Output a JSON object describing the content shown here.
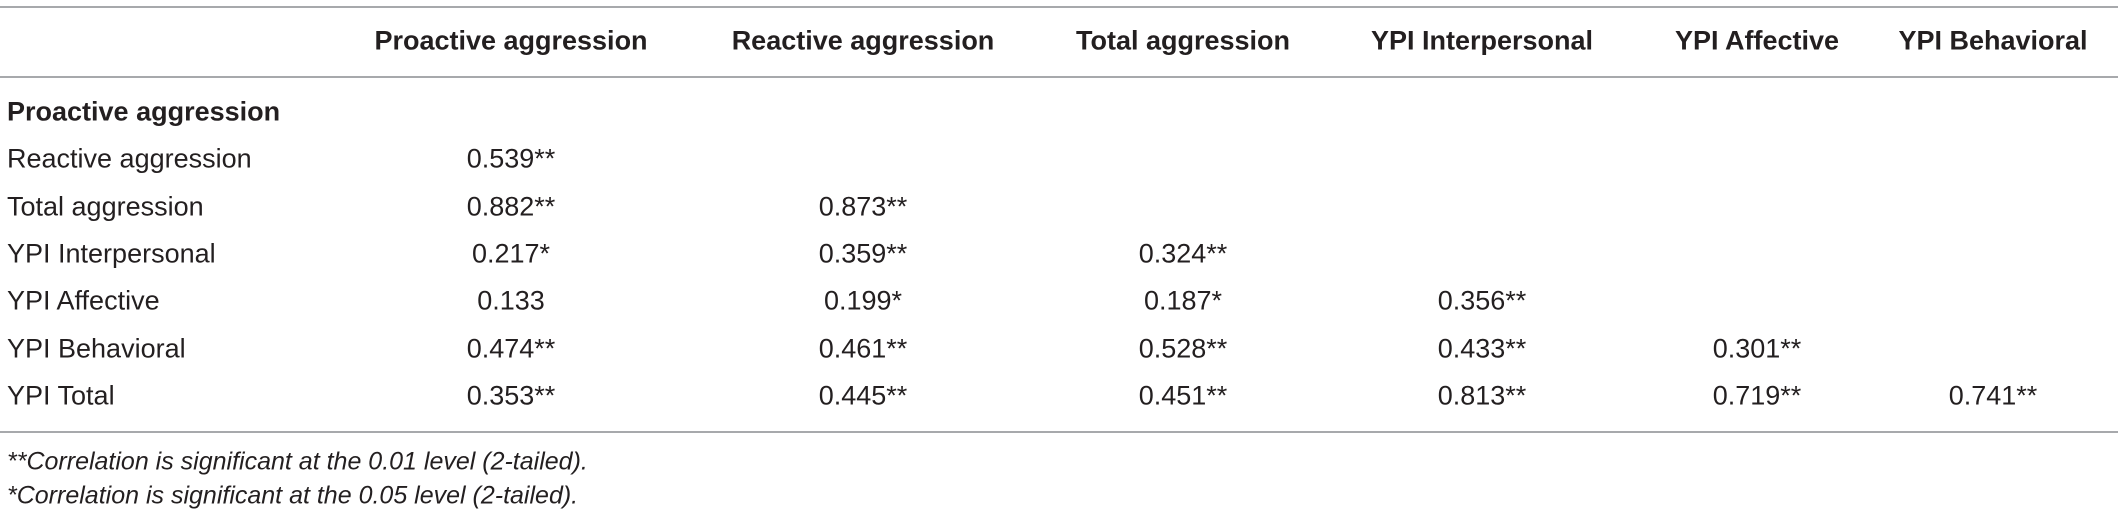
{
  "table": {
    "columns": [
      "Proactive aggression",
      "Reactive aggression",
      "Total aggression",
      "YPI Interpersonal",
      "YPI Affective",
      "YPI Behavioral"
    ],
    "rows": [
      {
        "label": "Proactive aggression"
      },
      {
        "label": "Reactive aggression",
        "values": [
          "0.539**"
        ]
      },
      {
        "label": "Total aggression",
        "values": [
          "0.882**",
          "0.873**"
        ]
      },
      {
        "label": "YPI Interpersonal",
        "values": [
          "0.217*",
          "0.359**",
          "0.324**"
        ]
      },
      {
        "label": "YPI Affective",
        "values": [
          "0.133",
          "0.199*",
          "0.187*",
          "0.356**"
        ]
      },
      {
        "label": "YPI Behavioral",
        "values": [
          "0.474**",
          "0.461**",
          "0.528**",
          "0.433**",
          "0.301**"
        ]
      },
      {
        "label": "YPI Total",
        "values": [
          "0.353**",
          "0.445**",
          "0.451**",
          "0.813**",
          "0.719**",
          "0.741**"
        ]
      }
    ]
  },
  "notes": [
    "**Correlation is significant at the 0.01 level (2-tailed).",
    "*Correlation is significant at the 0.05 level (2-tailed)."
  ]
}
